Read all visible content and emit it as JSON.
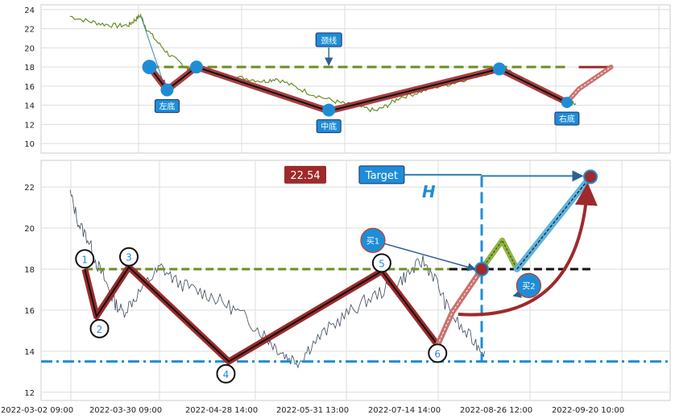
{
  "chart_data": [
    {
      "type": "line",
      "panel": "top",
      "ylim": [
        9,
        24.5
      ],
      "yticks": [
        10,
        12,
        14,
        16,
        18,
        20,
        22,
        24
      ],
      "grid": true,
      "price_trend": [
        [
          0.0,
          23.3
        ],
        [
          0.6,
          22.8
        ],
        [
          1.1,
          22.5
        ],
        [
          1.6,
          22.3
        ],
        [
          2.0,
          22.4
        ],
        [
          2.2,
          22.9
        ],
        [
          2.4,
          23.4
        ],
        [
          2.6,
          22.0
        ],
        [
          3.0,
          20.5
        ],
        [
          3.4,
          19.2
        ],
        [
          3.8,
          18.3
        ],
        [
          4.0,
          17.8
        ],
        [
          4.4,
          17.9
        ],
        [
          4.9,
          17.3
        ],
        [
          5.4,
          17.0
        ],
        [
          6.0,
          16.8
        ],
        [
          6.6,
          16.5
        ],
        [
          7.0,
          16.8
        ],
        [
          7.6,
          16.0
        ],
        [
          8.2,
          15.2
        ],
        [
          8.9,
          14.5
        ],
        [
          9.4,
          14.1
        ],
        [
          9.9,
          13.8
        ],
        [
          10.4,
          13.4
        ],
        [
          10.8,
          14.0
        ],
        [
          11.2,
          14.8
        ],
        [
          11.8,
          15.3
        ],
        [
          12.4,
          15.9
        ],
        [
          13.0,
          16.3
        ],
        [
          13.6,
          16.9
        ],
        [
          14.2,
          17.4
        ],
        [
          14.6,
          17.9
        ],
        [
          15.0,
          17.4
        ],
        [
          15.4,
          16.6
        ],
        [
          15.8,
          15.9
        ],
        [
          16.2,
          15.2
        ],
        [
          16.6,
          14.6
        ],
        [
          17.0,
          14.3
        ],
        [
          17.2,
          14.2
        ]
      ],
      "pattern_line": [
        [
          2.7,
          18.0
        ],
        [
          3.3,
          15.6
        ],
        [
          4.3,
          18.0
        ],
        [
          8.8,
          13.4
        ],
        [
          14.6,
          17.8
        ],
        [
          16.9,
          14.3
        ]
      ],
      "projection": [
        [
          16.9,
          14.3
        ],
        [
          17.3,
          15.7
        ],
        [
          18.4,
          18.0
        ]
      ],
      "neckline_y": 18.0,
      "neckline_range": [
        2.7,
        17.0
      ],
      "neckline_tail": [
        [
          17.3,
          18.0
        ],
        [
          18.4,
          18.0
        ]
      ],
      "entry_arrow": [
        [
          2.4,
          23.4
        ],
        [
          3.2,
          16.1
        ]
      ],
      "markers": [
        {
          "x": 2.7,
          "y": 18.0,
          "size": 9,
          "label": ""
        },
        {
          "x": 3.3,
          "y": 15.6,
          "size": 8,
          "label": "左底"
        },
        {
          "x": 4.3,
          "y": 18.0,
          "size": 8,
          "label": ""
        },
        {
          "x": 8.8,
          "y": 13.5,
          "size": 8,
          "label": "中底"
        },
        {
          "x": 14.6,
          "y": 17.8,
          "size": 8,
          "label": ""
        },
        {
          "x": 16.9,
          "y": 14.3,
          "size": 7,
          "label": "右底"
        }
      ],
      "neckline_label": "颈线",
      "neckline_label_pos": [
        8.8,
        20.8
      ],
      "neckline_arrow_to": [
        8.8,
        18.2
      ]
    },
    {
      "type": "line",
      "panel": "bottom",
      "ylim": [
        11.6,
        23.3
      ],
      "yticks": [
        12,
        14,
        16,
        18,
        20,
        22
      ],
      "grid": true,
      "xlabels": [
        "2022-03-02 09:00",
        "2022-03-30 09:00",
        "2022-04-28 14:00",
        "2022-05-31 13:00",
        "2022-07-14 14:00",
        "2022-08-26 12:00",
        "2022-09-20 10:00"
      ],
      "price_trend": [
        [
          0.0,
          21.7
        ],
        [
          0.3,
          20.2
        ],
        [
          0.6,
          19.5
        ],
        [
          0.9,
          18.3
        ],
        [
          1.2,
          17.4
        ],
        [
          1.5,
          16.4
        ],
        [
          1.8,
          15.9
        ],
        [
          2.2,
          16.6
        ],
        [
          2.7,
          17.5
        ],
        [
          3.1,
          18.1
        ],
        [
          3.6,
          17.4
        ],
        [
          4.2,
          17.0
        ],
        [
          4.8,
          16.7
        ],
        [
          5.4,
          16.2
        ],
        [
          6.0,
          15.6
        ],
        [
          6.6,
          14.8
        ],
        [
          7.0,
          14.2
        ],
        [
          7.4,
          13.7
        ],
        [
          7.8,
          13.5
        ],
        [
          8.2,
          14.3
        ],
        [
          8.8,
          15.1
        ],
        [
          9.4,
          15.8
        ],
        [
          10.0,
          16.4
        ],
        [
          10.6,
          16.9
        ],
        [
          11.2,
          17.4
        ],
        [
          11.6,
          17.9
        ],
        [
          12.0,
          18.4
        ],
        [
          12.4,
          17.6
        ],
        [
          12.8,
          16.2
        ],
        [
          13.3,
          15.1
        ],
        [
          13.8,
          14.4
        ],
        [
          14.1,
          14.0
        ]
      ],
      "pattern_line": [
        [
          0.5,
          18.0
        ],
        [
          0.9,
          15.7
        ],
        [
          2.0,
          18.1
        ],
        [
          5.4,
          13.5
        ],
        [
          10.6,
          17.9
        ],
        [
          12.5,
          14.3
        ]
      ],
      "points": [
        {
          "label": "1",
          "x": 0.5,
          "y": 18.5
        },
        {
          "label": "2",
          "x": 1.0,
          "y": 15.1
        },
        {
          "label": "3",
          "x": 2.0,
          "y": 18.6
        },
        {
          "label": "4",
          "x": 5.3,
          "y": 12.9
        },
        {
          "label": "5",
          "x": 10.6,
          "y": 18.3
        },
        {
          "label": "6",
          "x": 12.5,
          "y": 13.9
        }
      ],
      "neckline_y": 18.0,
      "neckline_range": [
        0.5,
        12.9
      ],
      "neckline_tail": [
        [
          12.9,
          18.0
        ],
        [
          17.7,
          18.0
        ]
      ],
      "support_y": 13.5,
      "breakout": [
        [
          12.5,
          14.3
        ],
        [
          13.0,
          15.9
        ],
        [
          14.0,
          18.0
        ]
      ],
      "pullback": [
        [
          14.0,
          18.0
        ],
        [
          14.7,
          19.4
        ],
        [
          15.2,
          18.0
        ],
        [
          17.7,
          22.5
        ]
      ],
      "target_curve_from": [
        13.2,
        15.8
      ],
      "target_curve_to": [
        17.6,
        22.1
      ],
      "target_point": [
        17.7,
        22.5
      ],
      "target_level": 22.54,
      "target_label": "Target",
      "target_label_pos": [
        10.6,
        22.6
      ],
      "value_label_pos": [
        8.0,
        22.6
      ],
      "height_label": "H",
      "height_label_pos": [
        12.2,
        21.5
      ],
      "height_line_x": 14.0,
      "buy_points": [
        {
          "label": "买1",
          "x": 10.3,
          "y": 19.4,
          "arrow_to": [
            14.0,
            18.0
          ]
        },
        {
          "label": "买2",
          "x": 15.6,
          "y": 17.2,
          "arrow_to": [
            15.3,
            16.7
          ]
        }
      ]
    }
  ],
  "colors": {
    "price": "#6a8c22",
    "price_bottom": "#3a4a5a",
    "pattern": "#9e2a2b",
    "neckline": "#6b8e23",
    "marker": "#1f8dd6",
    "label_bg": "#1f8dd6",
    "label_border": "#1a2f6e",
    "support": "#1f8dd6",
    "value_box": "#9e2a2b",
    "grid": "#dddddd"
  }
}
